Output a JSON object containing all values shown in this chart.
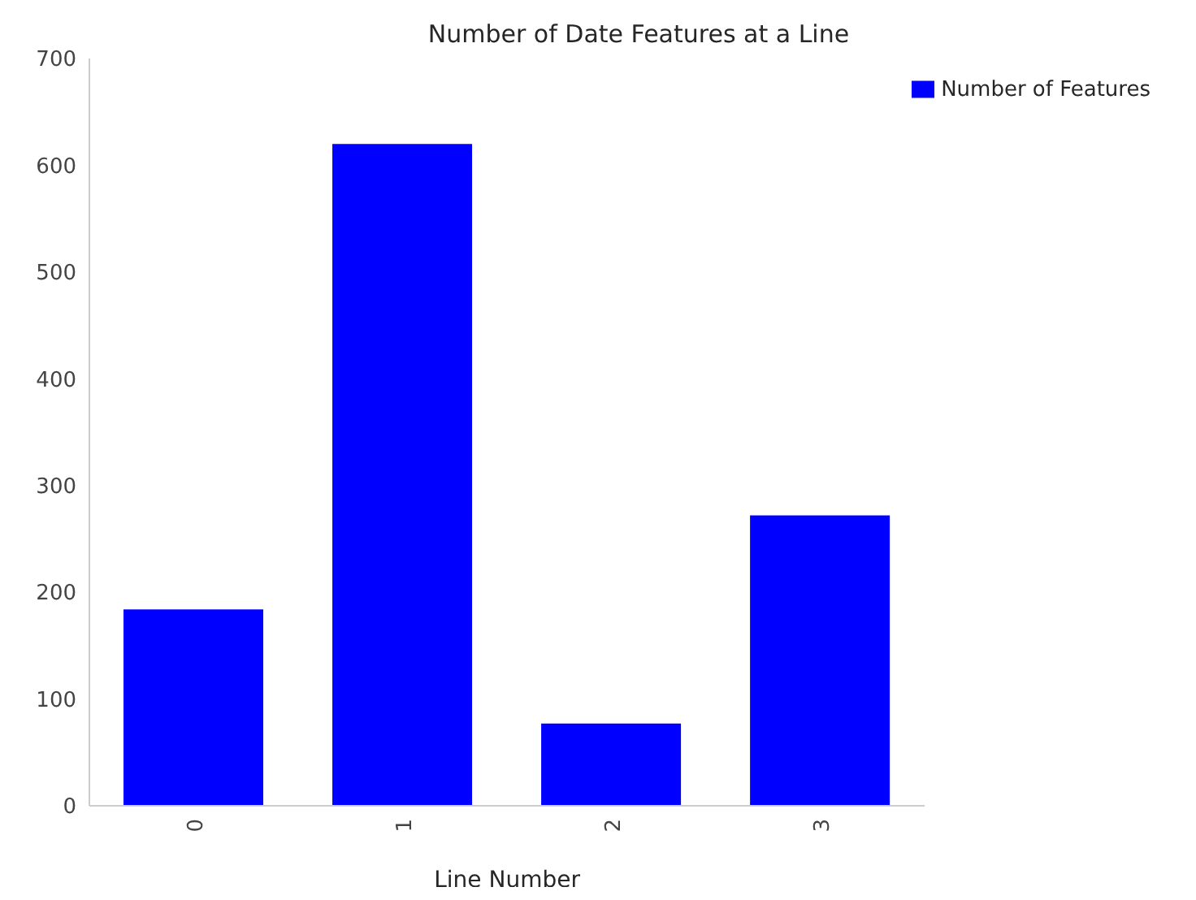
{
  "chart_data": {
    "type": "bar",
    "title": "Number of Date Features at a Line",
    "xlabel": "Line Number",
    "categories": [
      "0",
      "1",
      "2",
      "3"
    ],
    "series": [
      {
        "name": "Number of Features",
        "color": "#0000ff",
        "values": [
          184,
          620,
          77,
          272
        ]
      }
    ],
    "ylim": [
      0,
      700
    ],
    "yticks": [
      0,
      100,
      200,
      300,
      400,
      500,
      600,
      700
    ],
    "grid": false,
    "legend": "top right"
  }
}
